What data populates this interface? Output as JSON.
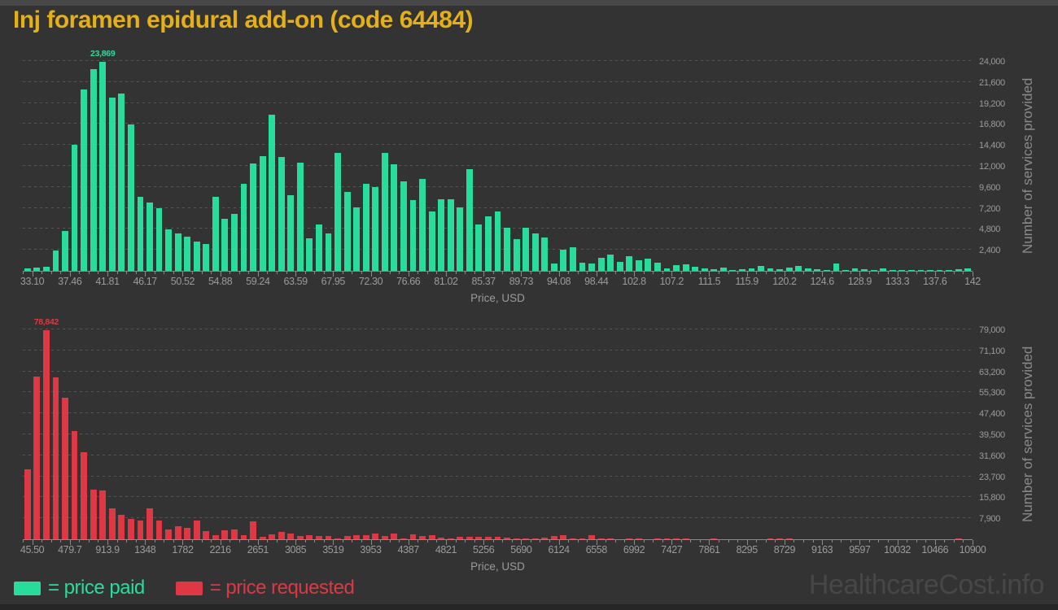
{
  "title": "Inj foramen epidural add-on (code 64484)",
  "watermark": "HealthcareCost.info",
  "legend": {
    "paid": "= price paid",
    "requested": "= price requested"
  },
  "colors": {
    "background": "#333333",
    "top_strip": "#484848",
    "bottom_strip": "#262626",
    "title": "#e4af17",
    "paid": "#28dd9c",
    "requested": "#dd3843",
    "tick_text": "#9b9b9b",
    "axis_title_text": "#9b9b9b",
    "y_axis_title_text": "#8a8a8a",
    "grid_line": "#545454",
    "axis_line": "#8a8a8a",
    "watermark": "#474747"
  },
  "chart_data": [
    {
      "type": "bar",
      "series": "price paid",
      "color_key": "paid",
      "xlabel": "Price, USD",
      "ylabel": "Number of services provided",
      "peak_label": "23,869",
      "peak_value": 23869,
      "ymax": 24000,
      "ystep": 2400,
      "grid": true,
      "legend_position": "bottom-left",
      "x_range": [
        33.1,
        142
      ],
      "y_tick_labels": [
        "2,400",
        "4,800",
        "7,200",
        "9,600",
        "12,000",
        "14,400",
        "16,800",
        "19,200",
        "21,600",
        "24,000"
      ],
      "x_tick_labels": [
        "33.10",
        "37.46",
        "41.81",
        "46.17",
        "50.52",
        "54.88",
        "59.24",
        "63.59",
        "67.95",
        "72.30",
        "76.66",
        "81.02",
        "85.37",
        "89.73",
        "94.08",
        "98.44",
        "102.8",
        "107.2",
        "111.5",
        "115.9",
        "120.2",
        "124.6",
        "128.9",
        "133.3",
        "137.6",
        "142"
      ],
      "values": [
        250,
        380,
        500,
        2300,
        4600,
        14400,
        20700,
        23100,
        23869,
        19800,
        20300,
        16700,
        8450,
        7850,
        7200,
        4760,
        4320,
        3940,
        3370,
        3060,
        8440,
        5920,
        6520,
        9990,
        12280,
        13140,
        17860,
        12980,
        8660,
        12380,
        3720,
        5350,
        4250,
        13450,
        8980,
        7240,
        9980,
        9600,
        13450,
        12190,
        10240,
        8090,
        10550,
        6830,
        8190,
        8190,
        7300,
        11650,
        5350,
        6200,
        6800,
        4890,
        3650,
        4900,
        4250,
        3800,
        880,
        2460,
        2680,
        945,
        880,
        1510,
        1830,
        1010,
        1640,
        1200,
        1420,
        945,
        250,
        630,
        790,
        470,
        315,
        160,
        380,
        120,
        160,
        315,
        570,
        315,
        200,
        420,
        560,
        250,
        180,
        140,
        850,
        120,
        300,
        180,
        120,
        250,
        100,
        120,
        100,
        140,
        100,
        120,
        100,
        150,
        260
      ]
    },
    {
      "type": "bar",
      "series": "price requested",
      "color_key": "requested",
      "xlabel": "Price, USD",
      "ylabel": "Number of services provided",
      "peak_label": "78,842",
      "peak_value": 78842,
      "ymax": 79000,
      "ystep": 7900,
      "grid": true,
      "legend_position": "bottom-left",
      "x_range": [
        45.5,
        10900
      ],
      "y_tick_labels": [
        "7,900",
        "15,800",
        "23,700",
        "31,600",
        "39,500",
        "47,400",
        "55,300",
        "63,200",
        "71,100",
        "79,000"
      ],
      "x_tick_labels": [
        "45.50",
        "479.7",
        "913.9",
        "1348",
        "1782",
        "2216",
        "2651",
        "3085",
        "3519",
        "3953",
        "4387",
        "4821",
        "5256",
        "5690",
        "6124",
        "6558",
        "6992",
        "7427",
        "7861",
        "8295",
        "8729",
        "9163",
        "9597",
        "10032",
        "10466",
        "10900"
      ],
      "values": [
        26400,
        61300,
        78842,
        60800,
        53400,
        40700,
        32800,
        18800,
        18300,
        11600,
        9300,
        7700,
        6900,
        11600,
        6900,
        3700,
        5000,
        4200,
        7100,
        3000,
        1400,
        3400,
        3700,
        1600,
        6700,
        1000,
        1800,
        2800,
        2300,
        1300,
        1600,
        1300,
        1300,
        200,
        1100,
        1500,
        1400,
        2000,
        1200,
        2300,
        300,
        1800,
        1300,
        1500,
        700,
        200,
        900,
        800,
        900,
        900,
        1000,
        600,
        200,
        150,
        300,
        500,
        1200,
        1500,
        300,
        200,
        1500,
        300,
        150,
        0,
        200,
        150,
        0,
        400,
        350,
        400,
        150,
        0,
        0,
        150,
        0,
        0,
        0,
        0,
        0,
        400,
        150,
        350,
        0,
        0,
        0,
        0,
        0,
        0,
        0,
        0,
        0,
        0,
        0,
        0,
        0,
        0,
        0,
        0,
        0,
        350,
        0
      ]
    }
  ]
}
